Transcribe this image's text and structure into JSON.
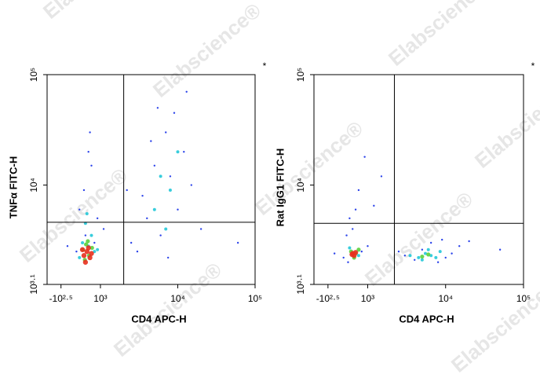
{
  "watermark": "Elabscience®",
  "chart_data": [
    {
      "type": "scatter",
      "xlabel": "CD4 APC-H",
      "ylabel": "TNFα FITC-H",
      "annotation": "*",
      "xlim": [
        -780,
        100000
      ],
      "ylim": [
        1259,
        100000
      ],
      "log_y": true,
      "xticks": [
        {
          "value": -316,
          "label": "-10²·⁵"
        },
        {
          "value": 1000,
          "label": "10³"
        },
        {
          "value": 10000,
          "label": "10⁴"
        },
        {
          "value": 100000,
          "label": "10⁵"
        }
      ],
      "yticks": [
        {
          "value": 1259,
          "label": "10³·¹"
        },
        {
          "value": 10000,
          "label": "10⁴"
        },
        {
          "value": 100000,
          "label": "10⁵"
        }
      ],
      "gate": {
        "x": 2000,
        "y": 4600
      },
      "series": [
        {
          "color": "#1530e8",
          "x": [
            300,
            450,
            700,
            900,
            500,
            200,
            800,
            600,
            -100,
            1100,
            2500,
            3500,
            5000,
            7000,
            9000,
            12000,
            15000,
            4000,
            6000,
            8000,
            3000,
            10000,
            5500,
            20000,
            60000,
            2200,
            13000,
            4500,
            7500,
            650
          ],
          "y": [
            6000,
            9000,
            15000,
            5000,
            3500,
            2500,
            3000,
            20000,
            2800,
            4000,
            3000,
            8000,
            15000,
            30000,
            45000,
            20000,
            10000,
            5000,
            3500,
            12000,
            2500,
            6000,
            50000,
            4000,
            3000,
            9000,
            70000,
            25000,
            2200,
            30000
          ]
        },
        {
          "color": "#22c8d8",
          "x": [
            400,
            600,
            800,
            500,
            700,
            300,
            5000,
            8000,
            10000,
            6000,
            7000,
            900,
            550
          ],
          "y": [
            3000,
            2800,
            2500,
            4500,
            3500,
            2200,
            6000,
            9000,
            20000,
            12000,
            4000,
            2600,
            5500
          ]
        },
        {
          "color": "#5ad23c",
          "x": [
            420,
            520,
            620,
            720,
            480,
            580
          ],
          "y": [
            2600,
            2900,
            2300,
            2700,
            2100,
            3100
          ]
        },
        {
          "color": "#e8301e",
          "x": [
            450,
            550,
            650,
            500,
            600,
            700,
            400
          ],
          "y": [
            2300,
            2500,
            2200,
            2000,
            2700,
            2400,
            2600
          ]
        }
      ]
    },
    {
      "type": "scatter",
      "xlabel": "CD4 APC-H",
      "ylabel": "Rat IgG1 FITC-H",
      "annotation": "*",
      "xlim": [
        -780,
        100000
      ],
      "ylim": [
        1259,
        100000
      ],
      "log_y": true,
      "xticks": [
        {
          "value": -316,
          "label": "-10²·⁵"
        },
        {
          "value": 1000,
          "label": "10³"
        },
        {
          "value": 10000,
          "label": "10⁴"
        },
        {
          "value": 100000,
          "label": "10⁵"
        }
      ],
      "yticks": [
        {
          "value": 1259,
          "label": "10³·¹"
        },
        {
          "value": 10000,
          "label": "10⁴"
        },
        {
          "value": 100000,
          "label": "10⁵"
        }
      ],
      "gate": {
        "x": 2200,
        "y": 4500
      },
      "series": [
        {
          "color": "#1530e8",
          "x": [
            300,
            500,
            800,
            1000,
            200,
            600,
            3000,
            5000,
            8000,
            12000,
            15000,
            4000,
            6500,
            2500,
            10000,
            -100,
            700,
            400,
            1500,
            9000,
            50000,
            20000,
            900,
            350,
            1200
          ],
          "y": [
            3500,
            4000,
            2500,
            2800,
            2200,
            6000,
            2300,
            2600,
            2000,
            2400,
            2800,
            2100,
            3000,
            2500,
            2200,
            2400,
            9000,
            5000,
            12000,
            3200,
            2600,
            3100,
            18000,
            2000,
            6500
          ]
        },
        {
          "color": "#22c8d8",
          "x": [
            3500,
            4500,
            5500,
            6500,
            7500,
            8500,
            5000,
            6000,
            400,
            700
          ],
          "y": [
            2300,
            2200,
            2400,
            2300,
            2200,
            2500,
            2100,
            2600,
            2700,
            2300
          ]
        },
        {
          "color": "#5ad23c",
          "x": [
            450,
            600,
            550,
            700,
            6000,
            5000
          ],
          "y": [
            2500,
            2400,
            2200,
            2600,
            2350,
            2250
          ]
        },
        {
          "color": "#e8301e",
          "x": [
            500,
            550,
            600,
            480
          ],
          "y": [
            2400,
            2300,
            2450,
            2350
          ]
        }
      ]
    }
  ]
}
